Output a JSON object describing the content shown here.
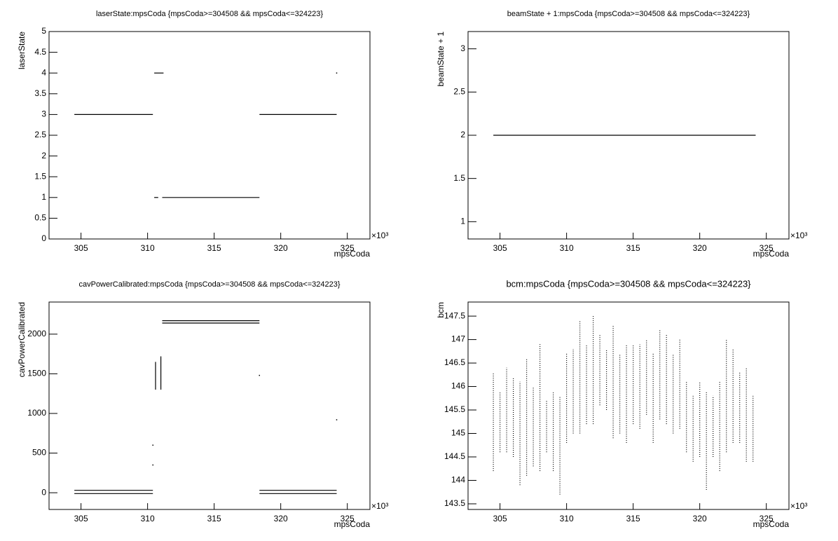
{
  "chart_data": [
    {
      "type": "line",
      "title": "laserState:mpsCoda {mpsCoda>=304508 && mpsCoda<=324223}",
      "x_label": "mpsCoda",
      "y_label": "laserState",
      "x_multiplier": "×10³",
      "xlim": [
        302.6,
        326.7
      ],
      "xticks": [
        305,
        310,
        315,
        320,
        325
      ],
      "ylim": [
        0,
        5
      ],
      "yticks": [
        0,
        0.5,
        1,
        1.5,
        2,
        2.5,
        3,
        3.5,
        4,
        4.5,
        5
      ],
      "color": "#000000",
      "style": "solid",
      "x": [
        304.5,
        310.4,
        null,
        310.5,
        311.2,
        null,
        310.5,
        310.8,
        null,
        311.1,
        318.4,
        null,
        318.4,
        324.2,
        null,
        324.2
      ],
      "values": [
        3,
        3,
        null,
        4,
        4,
        null,
        1,
        1,
        null,
        1,
        1,
        null,
        3,
        3,
        null,
        4
      ]
    },
    {
      "type": "line",
      "title": "beamState + 1:mpsCoda {mpsCoda>=304508 && mpsCoda<=324223}",
      "x_label": "mpsCoda",
      "y_label": "beamState + 1",
      "x_multiplier": "×10³",
      "xlim": [
        302.6,
        326.7
      ],
      "xticks": [
        305,
        310,
        315,
        320,
        325
      ],
      "ylim": [
        0.8,
        3.2
      ],
      "yticks": [
        1,
        1.5,
        2,
        2.5,
        3
      ],
      "color": "#000000",
      "style": "solid",
      "x": [
        304.5,
        324.2
      ],
      "values": [
        2,
        2
      ]
    },
    {
      "type": "line",
      "title": "cavPowerCalibrated:mpsCoda {mpsCoda>=304508 && mpsCoda<=324223}",
      "x_label": "mpsCoda",
      "y_label": "cavPowerCalibrated",
      "x_multiplier": "×10³",
      "xlim": [
        302.6,
        326.7
      ],
      "xticks": [
        305,
        310,
        315,
        320,
        325
      ],
      "ylim": [
        -211,
        2405
      ],
      "yticks": [
        0,
        500,
        1000,
        1500,
        2000
      ],
      "color": "#000000",
      "style": "solid",
      "x": [
        304.5,
        310.4,
        null,
        304.5,
        310.4,
        null,
        310.6,
        310.6,
        null,
        311.0,
        311.0,
        null,
        311.1,
        318.4,
        null,
        311.1,
        318.4,
        null,
        318.4,
        324.2,
        null,
        318.4,
        324.2,
        null,
        310.4,
        null,
        310.4,
        null,
        318.4,
        null,
        324.2
      ],
      "values": [
        30,
        30,
        null,
        -10,
        -10,
        null,
        1300,
        1650,
        null,
        1300,
        1720,
        null,
        2170,
        2170,
        null,
        2140,
        2140,
        null,
        30,
        30,
        null,
        -10,
        -10,
        null,
        600,
        null,
        350,
        null,
        1480,
        null,
        920
      ]
    },
    {
      "type": "line",
      "title": "bcm:mpsCoda {mpsCoda>=304508 && mpsCoda<=324223}",
      "x_label": "mpsCoda",
      "y_label": "bcm",
      "x_multiplier": "×10³",
      "xlim": [
        302.6,
        326.7
      ],
      "xticks": [
        305,
        310,
        315,
        320,
        325
      ],
      "ylim": [
        143.38,
        147.8
      ],
      "yticks": [
        143.5,
        144,
        144.5,
        145,
        145.5,
        146,
        146.5,
        147,
        147.5
      ],
      "color": "#000000",
      "style": "dotted",
      "x": [
        304.5,
        304.5,
        null,
        305,
        305,
        null,
        305.5,
        305.5,
        null,
        306,
        306,
        null,
        306.5,
        306.5,
        null,
        307,
        307,
        null,
        307.5,
        307.5,
        null,
        308,
        308,
        null,
        308.5,
        308.5,
        null,
        309,
        309,
        null,
        309.5,
        309.5,
        null,
        310,
        310,
        null,
        310.5,
        310.5,
        null,
        311,
        311,
        null,
        311.5,
        311.5,
        null,
        312,
        312,
        null,
        312.5,
        312.5,
        null,
        313,
        313,
        null,
        313.5,
        313.5,
        null,
        314,
        314,
        null,
        314.5,
        314.5,
        null,
        315,
        315,
        null,
        315.5,
        315.5,
        null,
        316,
        316,
        null,
        316.5,
        316.5,
        null,
        317,
        317,
        null,
        317.5,
        317.5,
        null,
        318,
        318,
        null,
        318.5,
        318.5,
        null,
        319,
        319,
        null,
        319.5,
        319.5,
        null,
        320,
        320,
        null,
        320.5,
        320.5,
        null,
        321,
        321,
        null,
        321.5,
        321.5,
        null,
        322,
        322,
        null,
        322.5,
        322.5,
        null,
        323,
        323,
        null,
        323.5,
        323.5,
        null,
        324,
        324
      ],
      "values": [
        144.2,
        146.3,
        null,
        144.6,
        145.9,
        null,
        144.6,
        146.4,
        null,
        144.5,
        146.2,
        null,
        143.9,
        146.1,
        null,
        144.1,
        146.6,
        null,
        144.3,
        146.0,
        null,
        144.2,
        146.9,
        null,
        144.6,
        145.7,
        null,
        144.2,
        145.9,
        null,
        143.7,
        145.8,
        null,
        144.8,
        146.7,
        null,
        145.0,
        146.8,
        null,
        145.0,
        147.4,
        null,
        145.2,
        146.9,
        null,
        145.2,
        147.5,
        null,
        145.6,
        147.1,
        null,
        145.5,
        146.8,
        null,
        144.9,
        147.3,
        null,
        145.0,
        146.7,
        null,
        144.8,
        146.9,
        null,
        145.2,
        146.9,
        null,
        145.1,
        146.9,
        null,
        145.4,
        147.0,
        null,
        144.8,
        146.7,
        null,
        145.3,
        147.2,
        null,
        145.2,
        147.1,
        null,
        145.0,
        146.7,
        null,
        145.1,
        147.0,
        null,
        144.6,
        146.1,
        null,
        144.4,
        145.8,
        null,
        144.5,
        146.1,
        null,
        143.8,
        145.9,
        null,
        144.5,
        145.8,
        null,
        144.2,
        146.1,
        null,
        144.6,
        147.0,
        null,
        144.8,
        146.8,
        null,
        144.8,
        146.3,
        null,
        144.4,
        146.4,
        null,
        144.4,
        145.8
      ]
    }
  ]
}
